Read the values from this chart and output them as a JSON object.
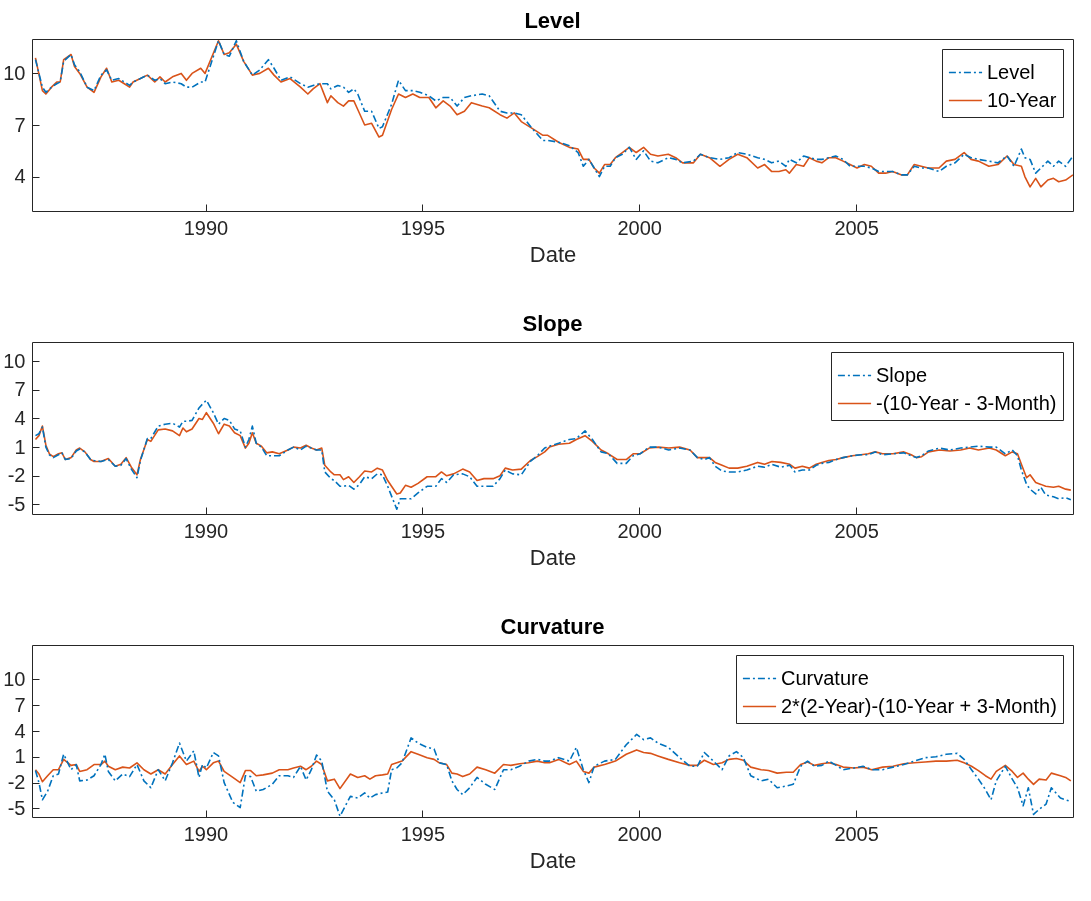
{
  "chart_data": [
    {
      "type": "line",
      "title": "Level",
      "xlabel": "Date",
      "xlim": [
        1986,
        2010
      ],
      "xticks": [
        1990,
        1995,
        2000,
        2005
      ],
      "ylim": [
        2,
        12
      ],
      "yticks": [
        4,
        7,
        10
      ],
      "grid": false,
      "legend": "top right",
      "x": [
        1986.08,
        1986.24,
        1986.32,
        1986.45,
        1986.57,
        1986.65,
        1986.73,
        1986.9,
        1986.98,
        1987.1,
        1987.27,
        1987.43,
        1987.59,
        1987.72,
        1987.84,
        1988.0,
        1988.13,
        1988.25,
        1988.33,
        1988.5,
        1988.66,
        1988.83,
        1988.95,
        1989.07,
        1989.24,
        1989.44,
        1989.56,
        1989.69,
        1989.89,
        1989.99,
        1990.3,
        1990.43,
        1990.55,
        1990.71,
        1990.88,
        1991.08,
        1991.25,
        1991.45,
        1991.58,
        1991.74,
        1991.95,
        1992.19,
        1992.36,
        1992.48,
        1992.64,
        1992.81,
        1992.89,
        1993.05,
        1993.18,
        1993.3,
        1993.42,
        1993.51,
        1993.67,
        1993.83,
        1994.0,
        1994.08,
        1994.29,
        1994.45,
        1994.61,
        1994.78,
        1994.94,
        1995.15,
        1995.31,
        1995.48,
        1995.64,
        1995.8,
        1995.97,
        1996.13,
        1996.38,
        1996.54,
        1996.79,
        1996.95,
        1997.12,
        1997.28,
        1997.53,
        1997.78,
        1997.89,
        1998.14,
        1998.39,
        1998.59,
        1998.71,
        1998.84,
        1998.96,
        1999.08,
        1999.2,
        1999.33,
        1999.45,
        1999.61,
        1999.77,
        1999.93,
        2000.1,
        2000.26,
        2000.43,
        2000.67,
        2000.84,
        2001.0,
        2001.25,
        2001.41,
        2001.62,
        2001.86,
        2002.07,
        2002.27,
        2002.48,
        2002.73,
        2002.89,
        2003.05,
        2003.22,
        2003.38,
        2003.46,
        2003.62,
        2003.79,
        2003.92,
        2004.08,
        2004.21,
        2004.37,
        2004.53,
        2004.7,
        2004.86,
        2005.02,
        2005.19,
        2005.35,
        2005.52,
        2005.68,
        2005.84,
        2006.05,
        2006.18,
        2006.34,
        2006.5,
        2006.66,
        2006.91,
        2007.08,
        2007.28,
        2007.49,
        2007.65,
        2007.82,
        2008.06,
        2008.27,
        2008.48,
        2008.64,
        2008.81,
        2008.89,
        2009.01,
        2009.14,
        2009.26,
        2009.42,
        2009.55,
        2009.67,
        2009.83,
        2010.0
      ],
      "series": [
        {
          "name": "Level",
          "color": "#0072bd",
          "line_style": "dashed",
          "values": [
            10.8,
            9.2,
            8.9,
            9.2,
            9.4,
            9.5,
            10.7,
            11.1,
            10.5,
            10.1,
            9.2,
            9.0,
            9.9,
            10.2,
            9.6,
            9.7,
            9.5,
            9.3,
            9.5,
            9.7,
            9.9,
            9.6,
            9.7,
            9.4,
            9.5,
            9.4,
            9.2,
            9.2,
            9.5,
            9.5,
            11.9,
            11.1,
            11.0,
            11.9,
            10.7,
            9.9,
            10.2,
            10.8,
            10.3,
            9.6,
            9.8,
            9.4,
            9.2,
            9.3,
            9.4,
            9.4,
            9.1,
            9.3,
            9.2,
            8.9,
            9.1,
            8.8,
            7.8,
            7.8,
            6.8,
            6.9,
            8.2,
            9.6,
            9.0,
            9.0,
            8.9,
            8.7,
            8.4,
            8.6,
            8.6,
            8.1,
            8.6,
            8.7,
            8.8,
            8.7,
            7.8,
            7.7,
            7.7,
            7.6,
            6.8,
            6.1,
            6.1,
            6.0,
            5.8,
            5.4,
            4.6,
            5.0,
            4.5,
            4.0,
            4.6,
            4.6,
            5.1,
            5.3,
            5.7,
            5.0,
            5.5,
            4.9,
            4.8,
            5.1,
            5.0,
            4.8,
            4.9,
            5.3,
            5.1,
            5.0,
            5.1,
            5.4,
            5.3,
            5.1,
            5.0,
            4.8,
            4.9,
            4.6,
            5.0,
            4.8,
            5.2,
            5.1,
            5.0,
            5.0,
            5.1,
            5.2,
            5.0,
            4.6,
            4.6,
            4.6,
            4.5,
            4.3,
            4.3,
            4.3,
            4.1,
            4.1,
            4.6,
            4.5,
            4.5,
            4.3,
            4.6,
            4.8,
            5.3,
            5.1,
            5.0,
            4.9,
            4.8,
            5.2,
            4.6,
            5.6,
            5.1,
            5.0,
            4.2,
            4.5,
            4.9,
            4.6,
            4.9,
            4.6,
            5.2
          ]
        },
        {
          "name": "10-Year",
          "color": "#d95319",
          "line_style": "solid",
          "values": [
            10.9,
            9.0,
            8.8,
            9.2,
            9.5,
            9.5,
            10.8,
            11.1,
            10.4,
            10.0,
            9.2,
            8.9,
            9.8,
            10.3,
            9.5,
            9.6,
            9.4,
            9.2,
            9.5,
            9.7,
            9.9,
            9.5,
            9.8,
            9.5,
            9.8,
            10.0,
            9.6,
            10.0,
            10.3,
            10.0,
            11.9,
            11.1,
            11.2,
            11.7,
            10.7,
            9.9,
            10.0,
            10.3,
            9.9,
            9.5,
            9.7,
            9.2,
            8.8,
            9.1,
            9.4,
            8.3,
            8.7,
            8.3,
            8.1,
            8.4,
            8.4,
            7.9,
            7.0,
            7.1,
            6.3,
            6.4,
            7.9,
            8.8,
            8.6,
            8.8,
            8.6,
            8.6,
            8.0,
            8.4,
            8.1,
            7.6,
            7.8,
            8.3,
            8.1,
            8.0,
            7.6,
            7.4,
            7.7,
            7.2,
            6.8,
            6.4,
            6.4,
            6.0,
            5.7,
            5.6,
            5.0,
            5.0,
            4.5,
            4.2,
            4.7,
            4.7,
            5.1,
            5.4,
            5.7,
            5.4,
            5.7,
            5.3,
            5.2,
            5.3,
            5.1,
            4.8,
            4.8,
            5.3,
            5.1,
            4.6,
            5.0,
            5.3,
            5.1,
            4.5,
            4.7,
            4.3,
            4.3,
            4.4,
            4.2,
            4.7,
            4.6,
            5.1,
            4.9,
            4.8,
            5.1,
            5.1,
            4.9,
            4.7,
            4.5,
            4.7,
            4.6,
            4.2,
            4.2,
            4.3,
            4.1,
            4.1,
            4.7,
            4.6,
            4.5,
            4.5,
            4.9,
            5.0,
            5.4,
            5.0,
            4.9,
            4.6,
            4.7,
            5.2,
            4.7,
            4.6,
            4.0,
            3.4,
            3.9,
            3.4,
            3.8,
            3.9,
            3.7,
            3.8,
            4.1
          ]
        }
      ]
    },
    {
      "type": "line",
      "title": "Slope",
      "xlabel": "Date",
      "xlim": [
        1986,
        2010
      ],
      "xticks": [
        1990,
        1995,
        2000,
        2005
      ],
      "ylim": [
        -6,
        12
      ],
      "yticks": [
        -5,
        -2,
        1,
        4,
        7,
        10
      ],
      "grid": false,
      "legend": "top right",
      "x": [
        1986.08,
        1986.16,
        1986.24,
        1986.32,
        1986.4,
        1986.49,
        1986.61,
        1986.69,
        1986.77,
        1986.9,
        1987.02,
        1987.1,
        1987.22,
        1987.35,
        1987.43,
        1987.59,
        1987.76,
        1987.92,
        1988.05,
        1988.17,
        1988.29,
        1988.42,
        1988.5,
        1988.66,
        1988.74,
        1988.91,
        1989.07,
        1989.24,
        1989.4,
        1989.48,
        1989.56,
        1989.69,
        1989.85,
        1989.93,
        1990.02,
        1990.18,
        1990.3,
        1990.43,
        1990.55,
        1990.67,
        1990.8,
        1990.92,
        1991.0,
        1991.08,
        1991.17,
        1991.29,
        1991.41,
        1991.54,
        1991.7,
        1991.9,
        1992.03,
        1992.19,
        1992.32,
        1992.44,
        1992.56,
        1992.68,
        1992.75,
        1992.89,
        1992.97,
        1993.1,
        1993.18,
        1993.3,
        1993.42,
        1993.55,
        1993.67,
        1993.83,
        1993.96,
        1994.08,
        1994.2,
        1994.41,
        1994.49,
        1994.61,
        1994.74,
        1994.9,
        1995.11,
        1995.31,
        1995.44,
        1995.56,
        1995.72,
        1995.93,
        1996.09,
        1996.26,
        1996.42,
        1996.63,
        1996.79,
        1996.91,
        1997.08,
        1997.28,
        1997.49,
        1997.65,
        1997.82,
        1997.93,
        1998.14,
        1998.39,
        1998.55,
        1998.75,
        1998.92,
        1999.12,
        1999.29,
        1999.49,
        1999.7,
        1999.86,
        2000.02,
        2000.23,
        2000.44,
        2000.68,
        2000.93,
        2001.17,
        2001.34,
        2001.5,
        2001.62,
        2001.75,
        2001.91,
        2002.07,
        2002.27,
        2002.48,
        2002.73,
        2002.89,
        2003.06,
        2003.26,
        2003.47,
        2003.59,
        2003.76,
        2003.92,
        2004.08,
        2004.21,
        2004.37,
        2004.54,
        2004.7,
        2004.91,
        2005.11,
        2005.28,
        2005.44,
        2005.61,
        2005.85,
        2006.1,
        2006.27,
        2006.39,
        2006.51,
        2006.67,
        2006.92,
        2007.16,
        2007.41,
        2007.62,
        2007.82,
        2008.07,
        2008.23,
        2008.44,
        2008.6,
        2008.72,
        2008.81,
        2008.93,
        2009.01,
        2009.14,
        2009.26,
        2009.37,
        2009.55,
        2009.67,
        2009.83,
        2009.95
      ],
      "series": [
        {
          "name": "Slope",
          "color": "#0072bd",
          "line_style": "dashed",
          "values": [
            2.2,
            2.4,
            3.1,
            1.0,
            0.2,
            -0.1,
            0.2,
            0.4,
            -0.3,
            -0.2,
            0.6,
            0.8,
            0.5,
            -0.3,
            -0.4,
            -0.5,
            -0.3,
            -1.0,
            -0.9,
            -0.2,
            -1.3,
            -2.2,
            -0.4,
            1.9,
            1.9,
            3.2,
            3.4,
            3.5,
            3.1,
            3.7,
            3.7,
            3.8,
            5.1,
            5.5,
            5.9,
            4.6,
            3.4,
            4.0,
            3.8,
            2.9,
            2.7,
            1.0,
            1.8,
            3.2,
            1.4,
            1.0,
            0.1,
            0.1,
            0.1,
            0.7,
            1.0,
            0.7,
            1.1,
            0.9,
            0.7,
            0.7,
            -1.6,
            -2.3,
            -2.5,
            -3.1,
            -3.1,
            -3.0,
            -3.4,
            -2.9,
            -2.1,
            -2.3,
            -1.8,
            -1.9,
            -3.1,
            -5.5,
            -4.4,
            -4.4,
            -4.4,
            -3.8,
            -3.1,
            -3.1,
            -2.3,
            -2.7,
            -1.9,
            -1.8,
            -2.1,
            -3.1,
            -3.1,
            -3.1,
            -2.3,
            -1.4,
            -1.8,
            -1.9,
            -0.5,
            0.1,
            0.9,
            1.1,
            1.4,
            1.8,
            1.9,
            2.7,
            1.8,
            0.5,
            0.3,
            -0.7,
            -0.7,
            0.1,
            0.3,
            1.0,
            1.0,
            0.7,
            0.9,
            0.7,
            -0.1,
            -0.3,
            -0.1,
            -1.0,
            -1.5,
            -1.6,
            -1.6,
            -1.4,
            -1.0,
            -1.1,
            -0.8,
            -1.1,
            -0.9,
            -1.6,
            -1.4,
            -1.4,
            -0.9,
            -0.7,
            -0.6,
            -0.3,
            -0.1,
            0.1,
            0.2,
            0.2,
            0.5,
            0.2,
            0.3,
            0.4,
            0.1,
            -0.1,
            0.1,
            0.6,
            0.9,
            0.7,
            0.9,
            1.0,
            1.1,
            1.0,
            1.0,
            0.3,
            0.7,
            0.1,
            -1.4,
            -2.9,
            -3.4,
            -3.9,
            -3.2,
            -4.0,
            -4.2,
            -4.4,
            -4.3,
            -4.5
          ]
        },
        {
          "name": "-(10-Year - 3-Month)",
          "color": "#d95319",
          "line_style": "solid",
          "values": [
            1.8,
            2.2,
            3.2,
            1.2,
            0.3,
            0.0,
            0.3,
            0.4,
            -0.3,
            -0.1,
            0.7,
            0.9,
            0.5,
            -0.3,
            -0.5,
            -0.5,
            -0.2,
            -1.0,
            -0.8,
            -0.1,
            -1.1,
            -1.9,
            -0.3,
            1.8,
            1.6,
            2.8,
            2.9,
            2.7,
            2.2,
            3.0,
            2.6,
            2.9,
            4.0,
            3.9,
            4.6,
            3.5,
            2.4,
            3.4,
            3.2,
            2.5,
            2.2,
            0.9,
            1.4,
            2.5,
            1.4,
            1.1,
            0.4,
            0.5,
            0.3,
            0.7,
            1.0,
            0.9,
            1.2,
            0.9,
            0.7,
            0.9,
            -0.9,
            -1.6,
            -1.9,
            -1.9,
            -2.4,
            -2.1,
            -2.7,
            -2.1,
            -1.5,
            -1.6,
            -1.2,
            -1.4,
            -2.5,
            -3.9,
            -3.8,
            -3.0,
            -3.2,
            -2.8,
            -2.1,
            -2.1,
            -1.6,
            -2.0,
            -1.8,
            -1.3,
            -1.6,
            -2.5,
            -2.3,
            -2.3,
            -2.0,
            -1.2,
            -1.4,
            -1.3,
            -0.4,
            0.0,
            0.5,
            1.0,
            1.3,
            1.4,
            1.8,
            2.2,
            1.6,
            0.7,
            0.3,
            -0.3,
            -0.3,
            0.3,
            0.3,
            0.9,
            1.0,
            0.9,
            1.0,
            0.7,
            -0.1,
            -0.1,
            -0.1,
            -0.6,
            -0.9,
            -1.2,
            -1.2,
            -1.0,
            -0.6,
            -0.8,
            -0.5,
            -0.6,
            -0.8,
            -1.2,
            -1.0,
            -1.2,
            -0.8,
            -0.6,
            -0.4,
            -0.3,
            -0.1,
            0.1,
            0.2,
            0.3,
            0.5,
            0.3,
            0.3,
            0.5,
            0.2,
            -0.1,
            0.0,
            0.5,
            0.7,
            0.6,
            0.7,
            0.9,
            0.7,
            0.9,
            0.7,
            0.1,
            0.5,
            0.3,
            -0.8,
            -2.2,
            -1.9,
            -2.7,
            -2.9,
            -3.1,
            -3.2,
            -3.1,
            -3.4,
            -3.5
          ]
        }
      ]
    },
    {
      "type": "line",
      "title": "Curvature",
      "xlabel": "Date",
      "xlim": [
        1986,
        2010
      ],
      "xticks": [
        1990,
        1995,
        2000,
        2005
      ],
      "ylim": [
        -6,
        14
      ],
      "yticks": [
        -5,
        -2,
        1,
        4,
        7,
        10
      ],
      "grid": false,
      "legend": "top right",
      "x": [
        1986.08,
        1986.16,
        1986.24,
        1986.36,
        1986.49,
        1986.61,
        1986.73,
        1986.9,
        1987.02,
        1987.1,
        1987.27,
        1987.43,
        1987.59,
        1987.68,
        1987.76,
        1987.92,
        1988.09,
        1988.25,
        1988.42,
        1988.58,
        1988.74,
        1988.91,
        1989.07,
        1989.24,
        1989.4,
        1989.56,
        1989.73,
        1989.85,
        1989.93,
        1990.02,
        1990.18,
        1990.3,
        1990.43,
        1990.63,
        1990.8,
        1990.92,
        1991.04,
        1991.17,
        1991.33,
        1991.54,
        1991.7,
        1991.9,
        1992.03,
        1992.19,
        1992.32,
        1992.44,
        1992.56,
        1992.68,
        1992.81,
        1992.97,
        1993.1,
        1993.34,
        1993.51,
        1993.67,
        1993.79,
        1993.92,
        1994.08,
        1994.2,
        1994.29,
        1994.41,
        1994.53,
        1994.74,
        1994.9,
        1995.11,
        1995.27,
        1995.39,
        1995.56,
        1995.68,
        1995.8,
        1995.93,
        1996.09,
        1996.26,
        1996.46,
        1996.67,
        1996.87,
        1997.04,
        1997.24,
        1997.45,
        1997.65,
        1997.82,
        1997.93,
        1998.14,
        1998.39,
        1998.55,
        1998.71,
        1998.84,
        1998.96,
        1999.2,
        1999.45,
        1999.7,
        1999.94,
        2000.1,
        2000.26,
        2000.43,
        2000.67,
        2000.93,
        2001.17,
        2001.34,
        2001.5,
        2001.71,
        2001.91,
        2002.07,
        2002.24,
        2002.4,
        2002.57,
        2002.81,
        2002.98,
        2003.18,
        2003.39,
        2003.55,
        2003.72,
        2003.88,
        2004.04,
        2004.21,
        2004.37,
        2004.54,
        2004.7,
        2004.95,
        2005.16,
        2005.36,
        2005.61,
        2005.85,
        2006.1,
        2006.34,
        2006.59,
        2006.84,
        2007.08,
        2007.33,
        2007.49,
        2007.66,
        2007.82,
        2007.98,
        2008.11,
        2008.23,
        2008.44,
        2008.6,
        2008.72,
        2008.85,
        2008.97,
        2009.09,
        2009.22,
        2009.38,
        2009.5,
        2009.71,
        2009.83,
        2009.95
      ],
      "series": [
        {
          "name": "Curvature",
          "color": "#0072bd",
          "line_style": "dashed",
          "values": [
            -0.6,
            -2.0,
            -4.0,
            -3.0,
            -1.2,
            -1.0,
            1.3,
            -0.5,
            0.1,
            -1.8,
            -1.7,
            -1.2,
            0.1,
            1.3,
            -0.7,
            -1.8,
            -1.0,
            -1.3,
            0.1,
            -1.8,
            -2.6,
            -0.5,
            -1.8,
            0.3,
            2.6,
            0.5,
            1.7,
            -1.4,
            0.1,
            -0.3,
            1.5,
            1.1,
            -2.0,
            -4.3,
            -4.9,
            -1.2,
            -1.3,
            -3.0,
            -2.8,
            -2.2,
            -1.2,
            -1.2,
            -1.4,
            -0.1,
            -1.7,
            -0.5,
            1.2,
            0.5,
            -3.0,
            -4.0,
            -5.9,
            -3.6,
            -3.8,
            -3.2,
            -3.8,
            -3.4,
            -3.2,
            -3.1,
            -0.5,
            -0.3,
            0.3,
            3.2,
            2.6,
            2.1,
            1.9,
            0.3,
            0.1,
            -1.8,
            -2.8,
            -3.4,
            -2.6,
            -1.4,
            -2.2,
            -2.8,
            -0.5,
            -0.5,
            -0.1,
            0.5,
            0.7,
            0.5,
            0.5,
            0.9,
            0.5,
            2.1,
            -0.5,
            -2.0,
            -0.1,
            0.5,
            0.7,
            2.4,
            3.6,
            3.0,
            3.2,
            2.6,
            2.1,
            0.9,
            -0.1,
            -0.1,
            1.5,
            0.5,
            -0.5,
            1.1,
            1.6,
            0.9,
            -1.2,
            -1.8,
            -1.6,
            -2.6,
            -2.4,
            -2.2,
            -0.1,
            0.5,
            -0.1,
            0.0,
            0.5,
            0.0,
            -0.5,
            -0.3,
            -0.1,
            -0.5,
            -0.5,
            -0.2,
            0.1,
            0.5,
            0.9,
            1.0,
            1.3,
            1.4,
            0.7,
            -0.5,
            -1.6,
            -2.8,
            -4.0,
            -1.8,
            -0.1,
            -1.6,
            -2.6,
            -4.7,
            -2.6,
            -5.7,
            -5.1,
            -4.5,
            -2.6,
            -3.8,
            -4.0,
            -4.2
          ]
        },
        {
          "name": "2*(2-Year)-(10-Year + 3-Month)",
          "color": "#d95319",
          "line_style": "solid",
          "values": [
            -0.5,
            -1.0,
            -1.9,
            -1.2,
            -0.5,
            -0.5,
            0.7,
            0.0,
            0.1,
            -0.7,
            -0.5,
            0.1,
            0.1,
            0.5,
            -0.1,
            -0.5,
            -0.2,
            -0.3,
            0.3,
            -0.5,
            -1.0,
            -0.5,
            -1.0,
            0.1,
            1.1,
            0.1,
            0.5,
            -0.7,
            -0.1,
            -0.5,
            0.3,
            0.5,
            -0.7,
            -1.4,
            -2.0,
            -0.6,
            -0.6,
            -1.2,
            -1.1,
            -0.9,
            -0.5,
            -0.5,
            -0.3,
            -0.1,
            -0.5,
            -0.1,
            0.5,
            0.1,
            -1.8,
            -1.6,
            -2.7,
            -1.0,
            -1.4,
            -1.2,
            -1.6,
            -1.2,
            -1.1,
            -1.0,
            0.1,
            0.3,
            0.5,
            1.6,
            1.3,
            0.9,
            0.7,
            0.3,
            0.1,
            -0.9,
            -1.0,
            -1.3,
            -1.0,
            -0.2,
            -0.5,
            -0.9,
            0.1,
            0.0,
            0.2,
            0.3,
            0.5,
            0.3,
            0.3,
            0.7,
            0.1,
            0.5,
            -0.7,
            -0.9,
            -0.2,
            0.1,
            0.5,
            1.3,
            1.8,
            1.5,
            1.4,
            1.1,
            0.7,
            0.3,
            0.0,
            0.0,
            0.6,
            0.1,
            0.3,
            0.7,
            0.8,
            0.6,
            -0.2,
            -0.5,
            -0.6,
            -0.9,
            -0.8,
            -0.8,
            0.1,
            0.4,
            0.0,
            0.2,
            0.3,
            0.1,
            -0.2,
            -0.3,
            -0.2,
            -0.5,
            -0.2,
            -0.1,
            0.2,
            0.3,
            0.4,
            0.5,
            0.5,
            0.6,
            0.3,
            -0.1,
            -0.6,
            -1.2,
            -1.6,
            -0.7,
            0.0,
            -0.7,
            -1.4,
            -0.9,
            -1.6,
            -2.2,
            -1.6,
            -1.7,
            -0.9,
            -1.2,
            -1.4,
            -1.8
          ]
        }
      ]
    }
  ]
}
